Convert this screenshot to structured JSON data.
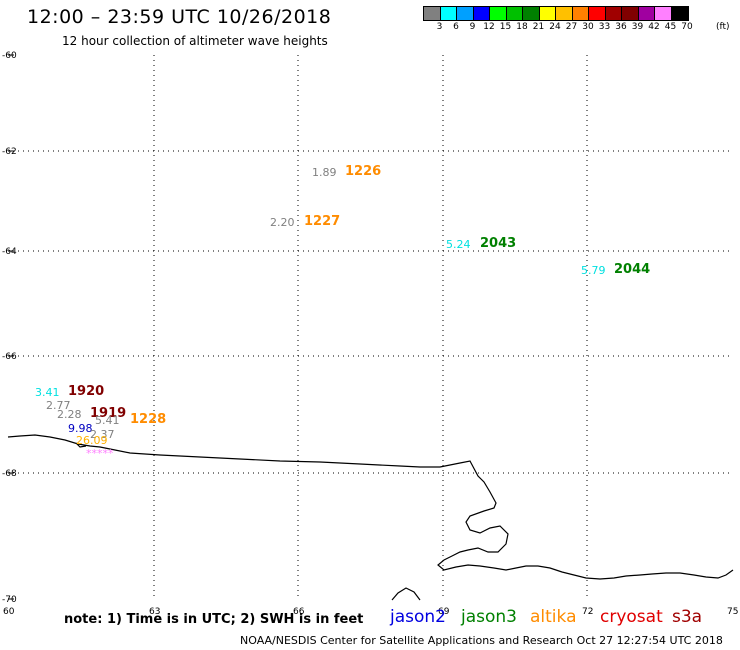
{
  "header": {
    "title": "12:00 – 23:59 UTC 10/26/2018",
    "subtitle": "12 hour collection of altimeter wave heights"
  },
  "colorbar": {
    "colors": [
      "#808080",
      "#00ffff",
      "#00a0ff",
      "#0000ff",
      "#00ff00",
      "#00c000",
      "#008000",
      "#ffff00",
      "#ffc000",
      "#ff8000",
      "#ff0000",
      "#a00000",
      "#800000",
      "#a000a0",
      "#ff80ff",
      "#000000"
    ],
    "labels": [
      "3",
      "6",
      "9",
      "12",
      "15",
      "18",
      "21",
      "24",
      "27",
      "30",
      "33",
      "36",
      "39",
      "42",
      "45",
      "70"
    ],
    "unit": "(ft)"
  },
  "axes": {
    "lat_labels": [
      "-60",
      "-62",
      "-64",
      "-66",
      "-68",
      "-70"
    ],
    "lon_labels": [
      "60",
      "63",
      "66",
      "69",
      "72",
      "75"
    ]
  },
  "observations": [
    {
      "swh": "1.89",
      "time": "1226",
      "swh_color": "#808080",
      "sat_color": "#ff8c00"
    },
    {
      "swh": "2.20",
      "time": "1227",
      "swh_color": "#808080",
      "sat_color": "#ff8c00"
    },
    {
      "swh": "5.24",
      "time": "2043",
      "swh_color": "#00e0e0",
      "sat_color": "#008000"
    },
    {
      "swh": "5.79",
      "time": "2044",
      "swh_color": "#00e0e0",
      "sat_color": "#008000"
    },
    {
      "swh": "3.41",
      "time": "1920",
      "swh_color": "#00e0e0",
      "sat_color": "#800000"
    },
    {
      "swh": "2.77",
      "time": "",
      "swh_color": "#808080",
      "sat_color": "#800000"
    },
    {
      "swh": "2.28",
      "time": "1919",
      "swh_color": "#808080",
      "sat_color": "#800000"
    },
    {
      "swh": "5.41",
      "time": "1228",
      "swh_color": "#808080",
      "sat_color": "#ff8c00"
    },
    {
      "swh": "9.98",
      "time": "",
      "swh_color": "#0000c0",
      "sat_color": "#000000"
    },
    {
      "swh": "2.37",
      "time": "",
      "swh_color": "#808080",
      "sat_color": "#000000"
    },
    {
      "swh": "26.09",
      "time": "",
      "swh_color": "#ffb000",
      "sat_color": "#000000"
    },
    {
      "swh": "*****",
      "time": "",
      "swh_color": "#ff80ff",
      "sat_color": "#000000"
    }
  ],
  "footer": {
    "note": "note:  1) Time is in UTC;  2) SWH is in feet",
    "legend": [
      {
        "name": "jason2",
        "color": "#0000e0"
      },
      {
        "name": "jason3",
        "color": "#008000"
      },
      {
        "name": "altika",
        "color": "#ff8c00"
      },
      {
        "name": "cryosat",
        "color": "#e00000"
      },
      {
        "name": "s3a",
        "color": "#a00000"
      }
    ],
    "credit": "NOAA/NESDIS Center for Satellite Applications and Research     Oct 27 12:27:54 UTC 2018"
  }
}
